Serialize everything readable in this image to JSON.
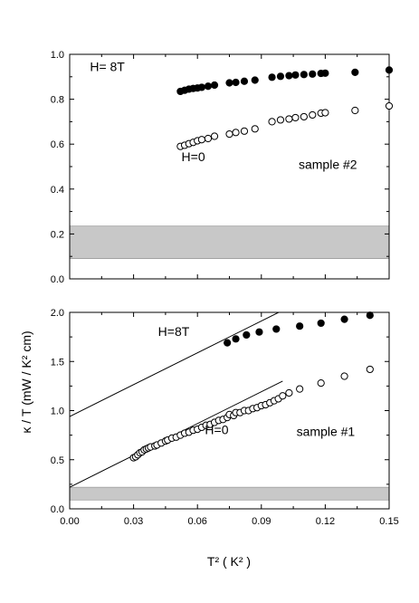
{
  "figure": {
    "ylabel": "κ / T (mW / K² cm)",
    "xlabel": "T² ( K² )"
  },
  "chart_data": [
    {
      "type": "scatter",
      "name": "top",
      "xlim": [
        0,
        0.15
      ],
      "ylim": [
        0,
        1.0
      ],
      "yticks": [
        "0.0",
        "0.2",
        "0.4",
        "0.6",
        "0.8",
        "1.0"
      ],
      "ytick_values": [
        0,
        0.2,
        0.4,
        0.6,
        0.8,
        1.0
      ],
      "xtick_values": [
        0,
        0.03,
        0.06,
        0.09,
        0.12,
        0.15
      ],
      "band": {
        "y0": 0.09,
        "y1": 0.235,
        "color": "#c8c8c8"
      },
      "annotations": [
        {
          "text": "H= 8T",
          "x": 0.0095,
          "y": 0.925
        },
        {
          "text": "H=0",
          "x": 0.0525,
          "y": 0.525
        },
        {
          "text": "sample #2",
          "x": 0.1075,
          "y": 0.49
        }
      ],
      "series": [
        {
          "marker": "filled",
          "x": [
            0.052,
            0.054,
            0.056,
            0.058,
            0.06,
            0.062,
            0.065,
            0.068,
            0.075,
            0.078,
            0.082,
            0.087,
            0.095,
            0.099,
            0.103,
            0.106,
            0.11,
            0.114,
            0.118,
            0.12,
            0.134,
            0.15
          ],
          "y": [
            0.835,
            0.84,
            0.845,
            0.848,
            0.85,
            0.853,
            0.858,
            0.863,
            0.873,
            0.875,
            0.88,
            0.885,
            0.898,
            0.902,
            0.905,
            0.908,
            0.91,
            0.912,
            0.915,
            0.916,
            0.92,
            0.93
          ]
        },
        {
          "marker": "open",
          "x": [
            0.052,
            0.054,
            0.056,
            0.058,
            0.06,
            0.062,
            0.065,
            0.068,
            0.075,
            0.078,
            0.082,
            0.087,
            0.095,
            0.099,
            0.103,
            0.106,
            0.11,
            0.114,
            0.118,
            0.12,
            0.134,
            0.15
          ],
          "y": [
            0.59,
            0.595,
            0.602,
            0.608,
            0.615,
            0.62,
            0.625,
            0.635,
            0.645,
            0.652,
            0.658,
            0.668,
            0.7,
            0.708,
            0.712,
            0.718,
            0.722,
            0.73,
            0.738,
            0.74,
            0.75,
            0.77
          ]
        }
      ],
      "lines": []
    },
    {
      "type": "scatter",
      "name": "bottom",
      "xlim": [
        0,
        0.15
      ],
      "ylim": [
        0,
        2.0
      ],
      "xticks": [
        "0.00",
        "0.03",
        "0.06",
        "0.09",
        "0.12",
        "0.15"
      ],
      "xtick_values": [
        0,
        0.03,
        0.06,
        0.09,
        0.12,
        0.15
      ],
      "yticks": [
        "0.0",
        "0.5",
        "1.0",
        "1.5",
        "2.0"
      ],
      "ytick_values": [
        0,
        0.5,
        1.0,
        1.5,
        2.0
      ],
      "band": {
        "y0": 0.09,
        "y1": 0.22,
        "color": "#c8c8c8"
      },
      "annotations": [
        {
          "text": "H=8T",
          "x": 0.0415,
          "y": 1.76
        },
        {
          "text": "H=0",
          "x": 0.0635,
          "y": 0.76
        },
        {
          "text": "sample #1",
          "x": 0.1065,
          "y": 0.74
        }
      ],
      "series": [
        {
          "marker": "filled",
          "x": [
            0.074,
            0.078,
            0.083,
            0.089,
            0.097,
            0.108,
            0.118,
            0.129,
            0.141
          ],
          "y": [
            1.69,
            1.73,
            1.77,
            1.8,
            1.83,
            1.86,
            1.89,
            1.93,
            1.97
          ]
        },
        {
          "marker": "open",
          "x": [
            0.03,
            0.031,
            0.032,
            0.033,
            0.034,
            0.035,
            0.036,
            0.037,
            0.038,
            0.04,
            0.041,
            0.043,
            0.045,
            0.046,
            0.048,
            0.05,
            0.052,
            0.054,
            0.056,
            0.058,
            0.06,
            0.062,
            0.064,
            0.066,
            0.068,
            0.07,
            0.072,
            0.074,
            0.075,
            0.077,
            0.078,
            0.08,
            0.082,
            0.084,
            0.086,
            0.088,
            0.09,
            0.092,
            0.094,
            0.096,
            0.098,
            0.1,
            0.103,
            0.108,
            0.118,
            0.129,
            0.141
          ],
          "y": [
            0.52,
            0.53,
            0.55,
            0.57,
            0.58,
            0.6,
            0.61,
            0.62,
            0.63,
            0.64,
            0.65,
            0.67,
            0.69,
            0.7,
            0.72,
            0.73,
            0.75,
            0.77,
            0.78,
            0.8,
            0.81,
            0.83,
            0.85,
            0.86,
            0.88,
            0.9,
            0.91,
            0.93,
            0.96,
            0.95,
            0.98,
            0.98,
            1.0,
            1.0,
            1.02,
            1.03,
            1.05,
            1.06,
            1.08,
            1.1,
            1.12,
            1.15,
            1.18,
            1.22,
            1.28,
            1.35,
            1.42
          ]
        }
      ],
      "lines": [
        {
          "x0": 0.0,
          "y0": 0.94,
          "x1": 0.1,
          "y1": 2.02
        },
        {
          "x0": 0.0,
          "y0": 0.22,
          "x1": 0.1,
          "y1": 1.3
        }
      ]
    }
  ]
}
